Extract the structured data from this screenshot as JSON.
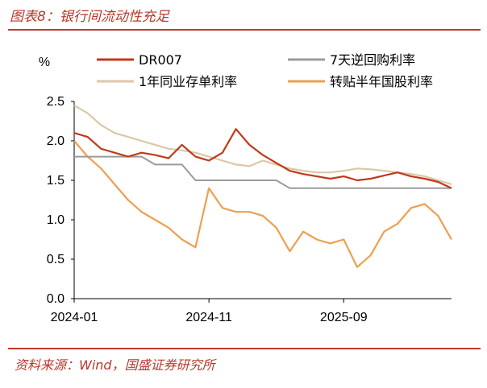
{
  "header": {
    "title": "图表8：银行间流动性充足"
  },
  "footer": {
    "source": "资料来源：Wind，国盛证券研究所"
  },
  "colors": {
    "dr007": "#c0391b",
    "reverse_repo": "#9b9b9b",
    "cd": "#dcc7a6",
    "discount": "#ef9f4f",
    "accent": "#c0392b"
  },
  "chart_data": {
    "type": "line",
    "ylabel": "%",
    "ylim": [
      0.0,
      2.5
    ],
    "yticks": [
      "0.0",
      "0.5",
      "1.0",
      "1.5",
      "2.0",
      "2.5"
    ],
    "xticks": [
      "2024-01",
      "2024-11",
      "2025-09"
    ],
    "x": [
      "2024-01",
      "2024-02",
      "2024-03",
      "2024-04",
      "2024-05",
      "2024-06",
      "2024-07",
      "2024-08",
      "2024-09",
      "2024-10",
      "2024-11",
      "2024-12",
      "2025-01",
      "2025-02",
      "2025-03",
      "2025-04",
      "2025-05",
      "2025-06",
      "2025-07",
      "2025-08",
      "2025-09",
      "2025-10",
      "2025-11",
      "2025-12",
      "2026-01",
      "2026-02",
      "2026-03",
      "2026-04",
      "2026-05"
    ],
    "legend_position": "top",
    "grid": false,
    "series": [
      {
        "name": "DR007",
        "color_key": "dr007",
        "values": [
          2.1,
          2.05,
          1.9,
          1.85,
          1.8,
          1.85,
          1.82,
          1.78,
          1.95,
          1.8,
          1.75,
          1.85,
          2.15,
          1.95,
          1.82,
          1.72,
          1.62,
          1.58,
          1.55,
          1.52,
          1.55,
          1.5,
          1.52,
          1.56,
          1.6,
          1.55,
          1.52,
          1.48,
          1.4
        ]
      },
      {
        "name": "7天逆回购利率",
        "color_key": "reverse_repo",
        "values": [
          1.8,
          1.8,
          1.8,
          1.8,
          1.8,
          1.8,
          1.7,
          1.7,
          1.7,
          1.5,
          1.5,
          1.5,
          1.5,
          1.5,
          1.5,
          1.5,
          1.4,
          1.4,
          1.4,
          1.4,
          1.4,
          1.4,
          1.4,
          1.4,
          1.4,
          1.4,
          1.4,
          1.4,
          1.4
        ]
      },
      {
        "name": "1年同业存单利率",
        "color_key": "cd",
        "values": [
          2.45,
          2.35,
          2.2,
          2.1,
          2.05,
          2.0,
          1.95,
          1.9,
          1.88,
          1.85,
          1.8,
          1.75,
          1.7,
          1.68,
          1.75,
          1.7,
          1.65,
          1.62,
          1.6,
          1.6,
          1.62,
          1.65,
          1.64,
          1.62,
          1.6,
          1.58,
          1.55,
          1.5,
          1.45
        ]
      },
      {
        "name": "转贴半年国股利率",
        "color_key": "discount",
        "values": [
          2.0,
          1.8,
          1.65,
          1.45,
          1.25,
          1.1,
          1.0,
          0.9,
          0.75,
          0.65,
          1.4,
          1.15,
          1.1,
          1.1,
          1.05,
          0.9,
          0.6,
          0.85,
          0.75,
          0.7,
          0.75,
          0.4,
          0.55,
          0.85,
          0.95,
          1.15,
          1.2,
          1.05,
          0.75
        ]
      }
    ]
  }
}
